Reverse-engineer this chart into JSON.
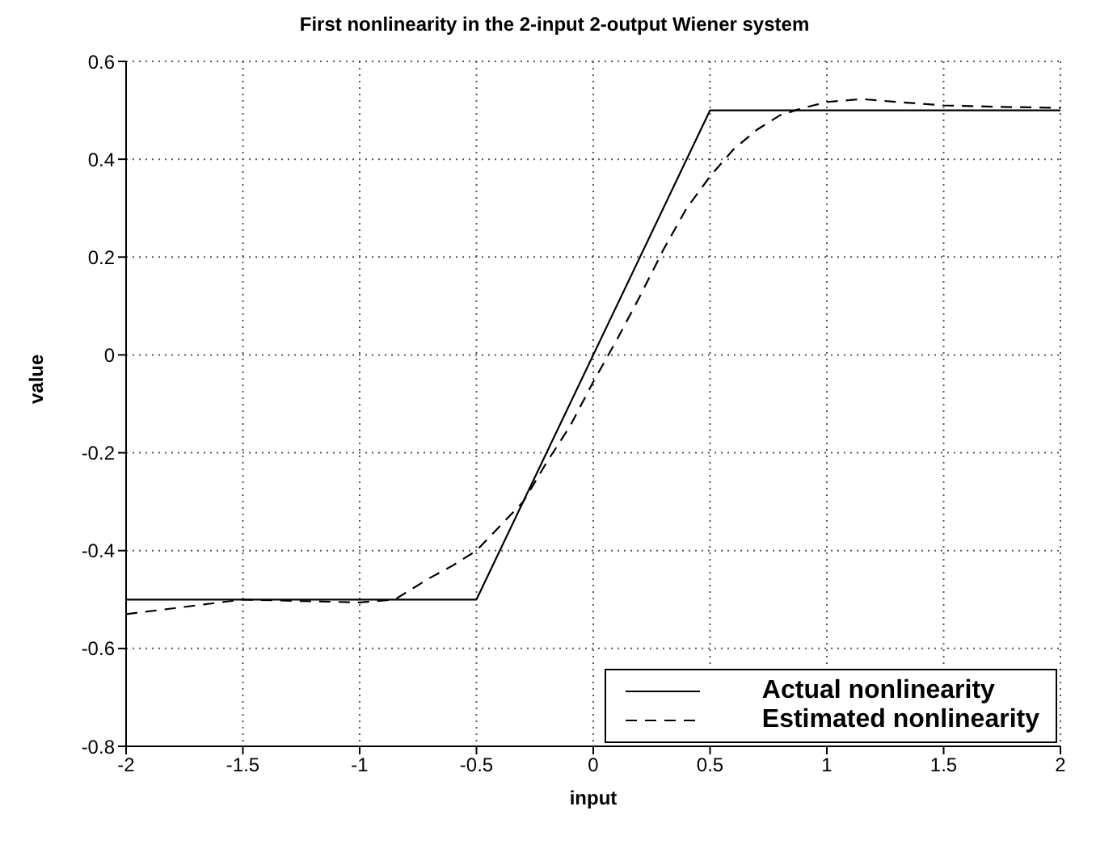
{
  "chart_data": {
    "type": "line",
    "title": "First nonlinearity in the 2-input 2-output Wiener system",
    "xlabel": "input",
    "ylabel": "value",
    "xlim": [
      -2,
      2
    ],
    "xticks": [
      -2,
      -1.5,
      -1,
      -0.5,
      0,
      0.5,
      1,
      1.5,
      2
    ],
    "ylim": [
      -0.8,
      0.6
    ],
    "yticks": [
      -0.8,
      -0.6,
      -0.4,
      -0.2,
      0,
      0.2,
      0.4,
      0.6
    ],
    "grid": true,
    "legend": "bottom right",
    "marker": "none",
    "series": [
      {
        "name": "Actual nonlinearity",
        "color": "#000000",
        "line_style": "solid",
        "x": [
          -2,
          -0.5,
          0.5,
          2
        ],
        "values": [
          -0.5,
          -0.5,
          0.5,
          0.5
        ]
      },
      {
        "name": "Estimated nonlinearity",
        "color": "#000000",
        "line_style": "dashed",
        "x": [
          -2,
          -1.5,
          -1,
          -0.85,
          -0.7,
          -0.6,
          -0.5,
          -0.4,
          -0.3,
          -0.2,
          -0.1,
          0,
          0.1,
          0.2,
          0.3,
          0.4,
          0.5,
          0.6,
          0.7,
          0.8,
          0.9,
          1,
          1.15,
          1.3,
          1.5,
          1.75,
          2
        ],
        "values": [
          -0.53,
          -0.5,
          -0.506,
          -0.5,
          -0.456,
          -0.43,
          -0.4,
          -0.35,
          -0.3,
          -0.22,
          -0.146,
          -0.055,
          0.03,
          0.12,
          0.215,
          0.3,
          0.365,
          0.42,
          0.46,
          0.49,
          0.505,
          0.517,
          0.523,
          0.517,
          0.51,
          0.507,
          0.505
        ]
      }
    ]
  }
}
